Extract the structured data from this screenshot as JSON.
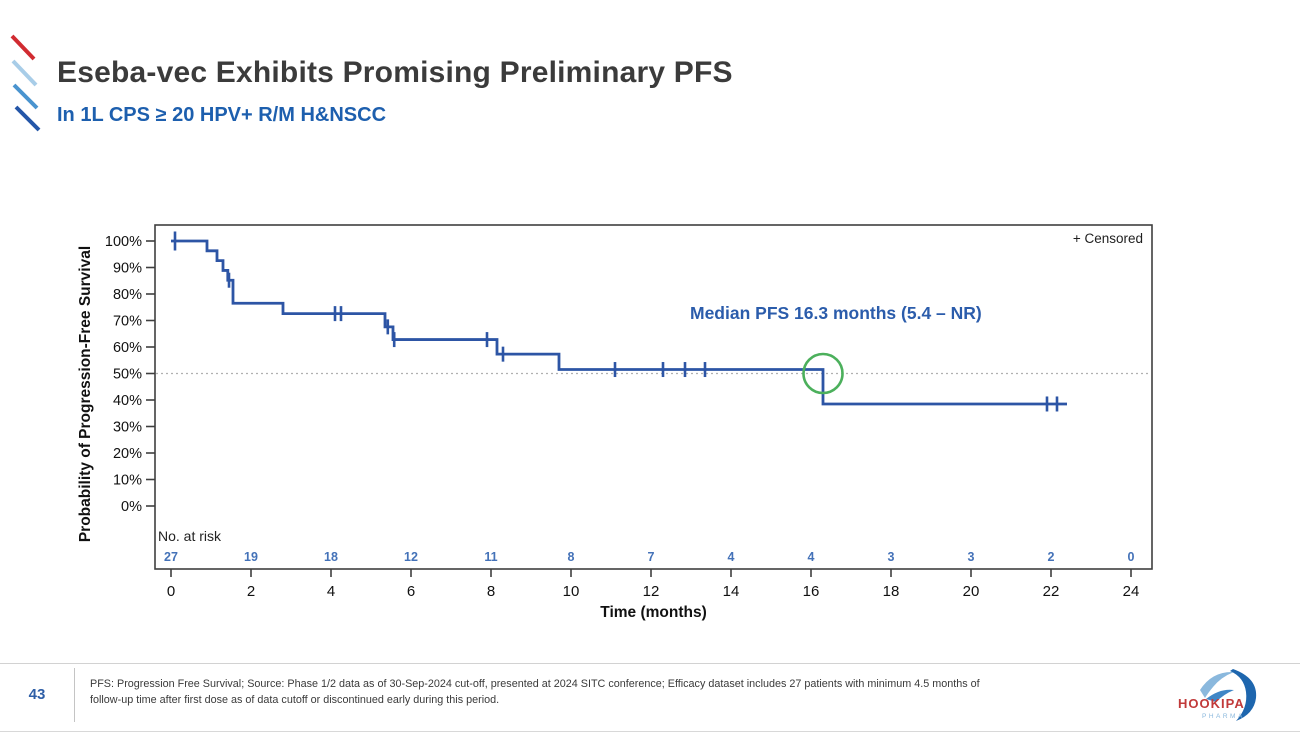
{
  "header": {
    "title": "Eseba-vec Exhibits Promising Preliminary PFS",
    "subtitle": "In 1L CPS ≥ 20 HPV+ R/M H&NSCC"
  },
  "chart": {
    "censored_legend": "+ Censored",
    "median_label": "Median PFS 16.3 months (5.4 – NR)",
    "y_axis_label": "Probability of Progression-Free Survival",
    "x_axis_label": "Time (months)",
    "at_risk_label": "No. at risk"
  },
  "chart_data": {
    "type": "line",
    "subtype": "kaplan-meier-step",
    "title": "Progression-Free Survival",
    "xlabel": "Time (months)",
    "ylabel": "Probability of Progression-Free Survival",
    "xlim": [
      0,
      24
    ],
    "ylim_pct": [
      0,
      100
    ],
    "x_ticks": [
      0,
      2,
      4,
      6,
      8,
      10,
      12,
      14,
      16,
      18,
      20,
      22,
      24
    ],
    "y_ticks_pct": [
      100,
      90,
      80,
      70,
      60,
      50,
      40,
      30,
      20,
      10,
      0
    ],
    "grid": false,
    "legend_position": "top-right",
    "steps": [
      [
        0,
        100
      ],
      [
        0.9,
        96.3
      ],
      [
        1.15,
        92.6
      ],
      [
        1.3,
        88.9
      ],
      [
        1.42,
        85.2
      ],
      [
        1.55,
        76.5
      ],
      [
        2.8,
        72.6
      ],
      [
        5.35,
        67.6
      ],
      [
        5.55,
        62.8
      ],
      [
        8.15,
        57.3
      ],
      [
        9.7,
        51.5
      ],
      [
        16.3,
        38.5
      ]
    ],
    "end_time": 22.4,
    "censors": [
      [
        0.1,
        100,
        1
      ],
      [
        1.45,
        85.2,
        0
      ],
      [
        4.1,
        72.6,
        0
      ],
      [
        4.25,
        72.6,
        0
      ],
      [
        5.42,
        67.6,
        0
      ],
      [
        5.58,
        62.8,
        0
      ],
      [
        7.9,
        62.8,
        0
      ],
      [
        8.3,
        57.3,
        0
      ],
      [
        11.1,
        51.5,
        0
      ],
      [
        12.3,
        51.5,
        0
      ],
      [
        12.85,
        51.5,
        0
      ],
      [
        13.35,
        51.5,
        0
      ],
      [
        21.9,
        38.5,
        0
      ],
      [
        22.15,
        38.5,
        0
      ]
    ],
    "median_months": 16.3,
    "median_ci": "5.4 – NR",
    "reference_line_pct": 50,
    "at_risk": {
      "times": [
        0,
        2,
        4,
        6,
        8,
        10,
        12,
        14,
        16,
        18,
        20,
        22,
        24
      ],
      "counts": [
        27,
        19,
        18,
        12,
        11,
        8,
        7,
        4,
        4,
        3,
        3,
        2,
        0
      ]
    },
    "colors": {
      "curve": "#2d55a5",
      "median_circle": "#4cb05c",
      "at_risk_text": "#4472b8",
      "axis": "#3f3f3f",
      "tick_text": "#111111",
      "ref_line": "#b0b0b0"
    }
  },
  "footer": {
    "page_number": "43",
    "footnote_line1": "PFS: Progression Free Survival; Source: Phase 1/2 data as of 30-Sep-2024 cut-off, presented at 2024 SITC conference; Efficacy dataset includes 27 patients with minimum 4.5 months of",
    "footnote_line2": "follow-up time after first dose as of data cutoff or discontinued early during this period.",
    "logo": {
      "name": "HOOKIPA",
      "sub": "PHARMA"
    }
  },
  "branding": {
    "accent_colors": [
      "#d12b31",
      "#a8cde8",
      "#4a94cf",
      "#2456a8"
    ],
    "title_color": "#3b3b3b",
    "subtitle_color": "#1d5fae",
    "logo_red": "#c13a3a",
    "logo_blue_dark": "#1e66ae",
    "logo_blue_light": "#8ab8dd"
  }
}
